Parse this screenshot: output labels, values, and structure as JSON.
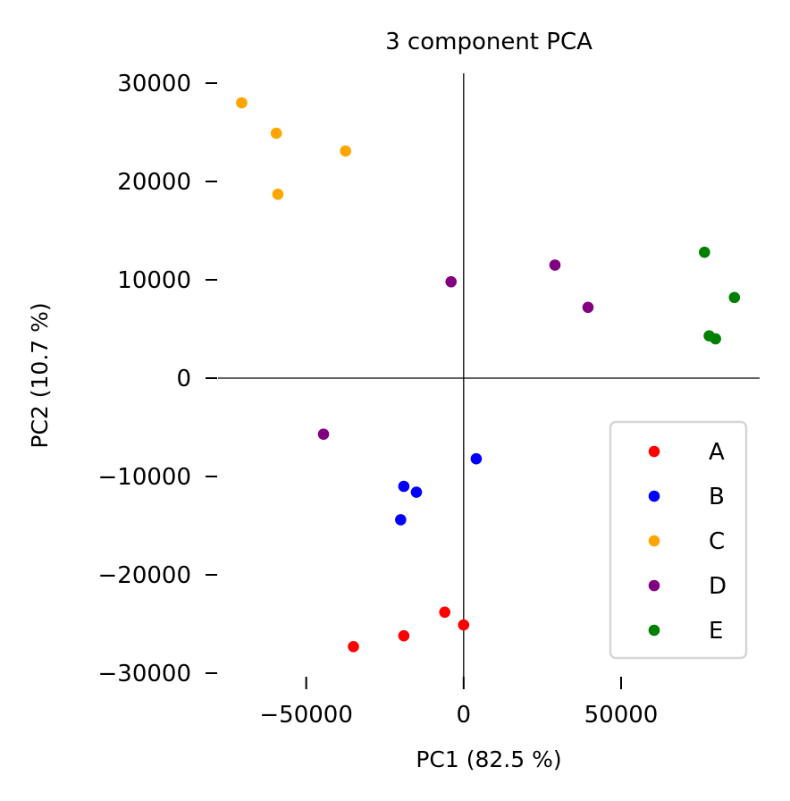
{
  "chart_data": {
    "type": "scatter",
    "title": "3 component PCA",
    "xlabel": "PC1 (82.5 %)",
    "ylabel": "PC2 (10.7 %)",
    "xlim": [
      -78000,
      94000
    ],
    "ylim": [
      -31000,
      31000
    ],
    "xticks": [
      -50000,
      0,
      50000
    ],
    "xtick_labels": [
      "−50000",
      "0",
      "50000"
    ],
    "yticks": [
      30000,
      20000,
      10000,
      0,
      -10000,
      -20000,
      -30000
    ],
    "ytick_labels": [
      "30000",
      "20000",
      "10000",
      "0",
      "−10000",
      "−20000",
      "−30000"
    ],
    "grid": false,
    "legend_position": "lower-right",
    "series": [
      {
        "name": "A",
        "color": "#ff0000",
        "points": [
          [
            -35000,
            -27300
          ],
          [
            -19000,
            -26200
          ],
          [
            -6000,
            -23800
          ],
          [
            0,
            -25100
          ]
        ]
      },
      {
        "name": "B",
        "color": "#0000ff",
        "points": [
          [
            -20000,
            -14400
          ],
          [
            -19000,
            -11000
          ],
          [
            -15000,
            -11600
          ],
          [
            4000,
            -8200
          ]
        ]
      },
      {
        "name": "C",
        "color": "#ffa500",
        "points": [
          [
            -70500,
            28000
          ],
          [
            -59500,
            24900
          ],
          [
            -37500,
            23100
          ],
          [
            -59000,
            18700
          ]
        ]
      },
      {
        "name": "D",
        "color": "#800080",
        "points": [
          [
            -4000,
            9800
          ],
          [
            29000,
            11500
          ],
          [
            39500,
            7200
          ],
          [
            -44500,
            -5700
          ]
        ]
      },
      {
        "name": "E",
        "color": "#008000",
        "points": [
          [
            76500,
            12800
          ],
          [
            86000,
            8200
          ],
          [
            78000,
            4300
          ],
          [
            80000,
            4000
          ]
        ]
      }
    ]
  }
}
